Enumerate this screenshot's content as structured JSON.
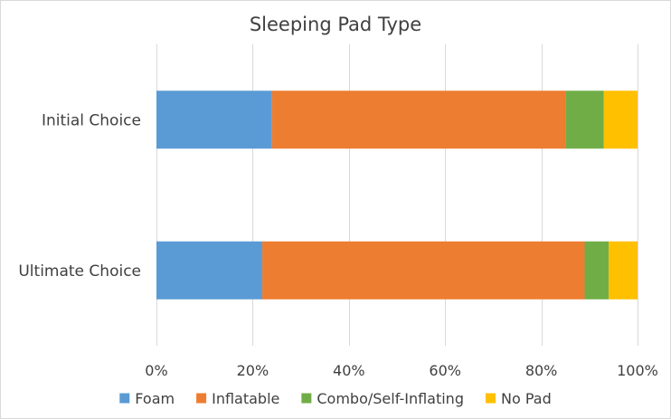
{
  "chart_data": {
    "type": "bar",
    "orientation": "horizontal",
    "stacked": "percent",
    "title": "Sleeping Pad Type",
    "categories": [
      "Initial Choice",
      "Ultimate Choice"
    ],
    "series": [
      {
        "name": "Foam",
        "color": "#5B9BD5",
        "values": [
          24,
          22
        ]
      },
      {
        "name": "Inflatable",
        "color": "#ED7D31",
        "values": [
          61,
          67
        ]
      },
      {
        "name": "Combo/Self-Inflating",
        "color": "#70AD47",
        "values": [
          8,
          5
        ]
      },
      {
        "name": "No Pad",
        "color": "#FFC000",
        "values": [
          7,
          6
        ]
      }
    ],
    "xlim": [
      0,
      100
    ],
    "x_ticks": [
      "0%",
      "20%",
      "40%",
      "60%",
      "80%",
      "100%"
    ],
    "grid": "vertical",
    "legend_position": "bottom"
  }
}
